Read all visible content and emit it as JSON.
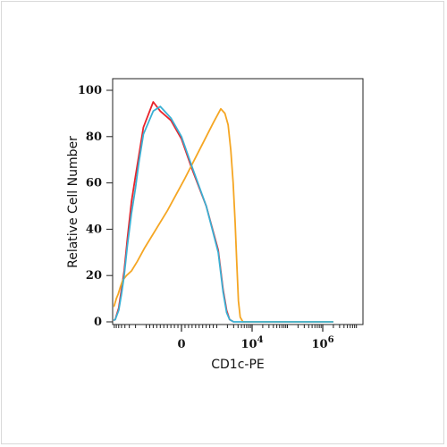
{
  "chart_data": {
    "type": "line",
    "xlabel": "CD1c-PE",
    "ylabel": "Relative Cell Number",
    "xscale": "biexponential",
    "ylim": [
      0,
      100
    ],
    "y_ticks": [
      0,
      20,
      40,
      60,
      80,
      100
    ],
    "x_ticks": [
      {
        "value": 0,
        "label": "0"
      },
      {
        "value": 10000,
        "label": "10",
        "exp": "4"
      },
      {
        "value": 1000000,
        "label": "10",
        "exp": "6"
      }
    ],
    "grid": false,
    "series": [
      {
        "color": "#e8232a",
        "points": [
          [
            -11000,
            0
          ],
          [
            -7500,
            1
          ],
          [
            -6000,
            6
          ],
          [
            -5000,
            14
          ],
          [
            -4200,
            22
          ],
          [
            -3400,
            36
          ],
          [
            -2600,
            52
          ],
          [
            -2000,
            63
          ],
          [
            -1600,
            72
          ],
          [
            -1200,
            84
          ],
          [
            -800,
            95
          ],
          [
            -600,
            91
          ],
          [
            -300,
            87
          ],
          [
            0,
            79
          ],
          [
            300,
            66
          ],
          [
            700,
            50
          ],
          [
            1100,
            31
          ],
          [
            1500,
            14
          ],
          [
            1900,
            5
          ],
          [
            2300,
            1
          ],
          [
            3000,
            0
          ]
        ]
      },
      {
        "color": "#f5a623",
        "points": [
          [
            -40000,
            0
          ],
          [
            -13000,
            1
          ],
          [
            -11000,
            3
          ],
          [
            -9500,
            6
          ],
          [
            -8000,
            7
          ],
          [
            -7000,
            10
          ],
          [
            -6200,
            12
          ],
          [
            -5400,
            15
          ],
          [
            -4600,
            18
          ],
          [
            -3600,
            20
          ],
          [
            -2600,
            22
          ],
          [
            -1800,
            26
          ],
          [
            -1100,
            32
          ],
          [
            -400,
            48
          ],
          [
            100,
            62
          ],
          [
            500,
            74
          ],
          [
            900,
            86
          ],
          [
            1300,
            92
          ],
          [
            1700,
            90
          ],
          [
            2100,
            85
          ],
          [
            2500,
            74
          ],
          [
            2900,
            60
          ],
          [
            3300,
            43
          ],
          [
            3700,
            25
          ],
          [
            4100,
            9
          ],
          [
            4600,
            2
          ],
          [
            5500,
            0
          ],
          [
            12000,
            0
          ],
          [
            2000000,
            0
          ]
        ]
      },
      {
        "color": "#3ab0d4",
        "points": [
          [
            -11000,
            0
          ],
          [
            -7500,
            1
          ],
          [
            -6000,
            5
          ],
          [
            -5000,
            12
          ],
          [
            -4200,
            20
          ],
          [
            -3400,
            33
          ],
          [
            -2600,
            47
          ],
          [
            -2000,
            58
          ],
          [
            -1600,
            69
          ],
          [
            -1200,
            81
          ],
          [
            -800,
            91
          ],
          [
            -600,
            93
          ],
          [
            -300,
            88
          ],
          [
            0,
            80
          ],
          [
            300,
            67
          ],
          [
            700,
            50
          ],
          [
            1100,
            30
          ],
          [
            1500,
            13
          ],
          [
            1900,
            4
          ],
          [
            2300,
            1
          ],
          [
            3000,
            0
          ],
          [
            12000,
            0
          ],
          [
            2000000,
            0
          ]
        ]
      }
    ]
  }
}
